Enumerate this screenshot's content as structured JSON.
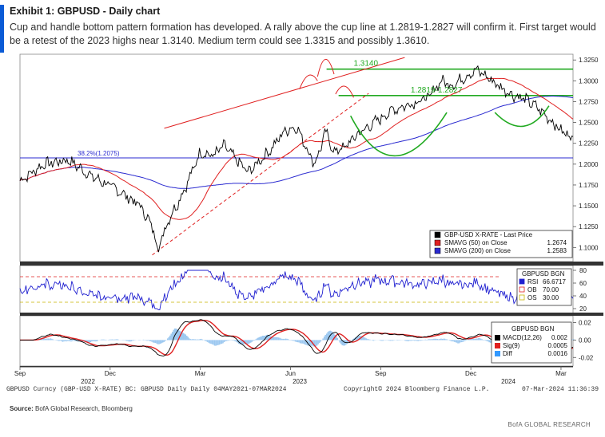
{
  "header": {
    "title": "Exhibit 1: GBPUSD - Daily chart",
    "subtitle": "Cup and handle bottom pattern formation has developed. A rally above the cup line at 1.2819-1.2827 will confirm it. First target would be a retest of the 2023 highs near 1.3140. Medium term could see 1.3315 and possibly 1.3610.",
    "accent_color": "#0a5bd6"
  },
  "footer": {
    "info_left": "GBPUSD Curncy (GBP-USD X-RATE) BC: GBPUSD Daily  Daily 04MAY2021-07MAR2024",
    "info_center": "Copyright© 2024 Bloomberg Finance L.P.",
    "info_right": "07-Mar-2024 11:36:39",
    "source_label": "Source:",
    "source_text": " BofA Global Research, Bloomberg",
    "brand": "BofA GLOBAL RESEARCH"
  },
  "chart_data": [
    {
      "type": "line",
      "panel": "price",
      "title": "GBP-USD X-RATE - Last Price",
      "y_ticks": [
        "1.3250",
        "1.3000",
        "1.2750",
        "1.2500",
        "1.2250",
        "1.2000",
        "1.1750",
        "1.1500",
        "1.1250",
        "1.1000"
      ],
      "ylim": [
        1.085,
        1.33
      ],
      "x_labels": [
        "Sep",
        "Dec",
        "Mar",
        "Jun",
        "Sep",
        "Dec",
        "Mar"
      ],
      "x_year_labels": [
        "2022",
        "2023",
        "2024"
      ],
      "x_values": [
        0,
        3,
        6,
        9,
        12,
        15,
        18
      ],
      "anchors_x": [
        0,
        0.8,
        1.6,
        2.4,
        3.2,
        4.0,
        4.4,
        4.6,
        4.8,
        5.0,
        5.2,
        5.6,
        6.0,
        6.4,
        6.8,
        7.2,
        7.6,
        8.0,
        8.4,
        8.8,
        9.2,
        9.6,
        9.8,
        10.0,
        10.2,
        10.4,
        10.8,
        11.2,
        11.6,
        12.0,
        12.4,
        12.8,
        13.2,
        13.6,
        14.0,
        14.4,
        14.8,
        15.2,
        15.6,
        16.0,
        16.4,
        16.8,
        17.2,
        17.6,
        18.0,
        18.4
      ],
      "anchors_y": [
        1.18,
        1.2,
        1.205,
        1.185,
        1.17,
        1.15,
        1.125,
        1.098,
        1.12,
        1.138,
        1.15,
        1.18,
        1.215,
        1.21,
        1.222,
        1.205,
        1.19,
        1.205,
        1.22,
        1.24,
        1.245,
        1.215,
        1.2,
        1.22,
        1.24,
        1.215,
        1.22,
        1.235,
        1.245,
        1.255,
        1.265,
        1.27,
        1.275,
        1.28,
        1.3,
        1.295,
        1.305,
        1.313,
        1.303,
        1.292,
        1.283,
        1.278,
        1.268,
        1.255,
        1.24,
        1.232
      ],
      "series": [
        {
          "name": "GBP-USD X-RATE - Last Price",
          "color": "#000000"
        },
        {
          "name": "SMAVG (50) on Close",
          "value": "1.2674",
          "color": "#e02020"
        },
        {
          "name": "SMAVG (200) on Close",
          "value": "1.2583",
          "color": "#2a2ad0"
        }
      ],
      "annotations": [
        {
          "text": "1.3140",
          "value": 1.314,
          "color": "#22aa22"
        },
        {
          "text": "1.2819-1.2827",
          "value": 1.2823,
          "color": "#22aa22"
        },
        {
          "text": "38.2%(1.2075)",
          "value": 1.2075,
          "color": "#2a2ad0"
        }
      ]
    },
    {
      "type": "line",
      "panel": "rsi",
      "title": "GBPUSD BGN",
      "y_ticks": [
        "80",
        "60",
        "40",
        "20"
      ],
      "ylim": [
        15,
        85
      ],
      "series": [
        {
          "name": "RSI",
          "value": "66.6717",
          "color": "#2020d0"
        },
        {
          "name": "OB",
          "value": "70.00",
          "color": "#e02020"
        },
        {
          "name": "OS",
          "value": "30.00",
          "color": "#c8b400"
        }
      ]
    },
    {
      "type": "line",
      "panel": "macd",
      "title": "GBPUSD BGN",
      "y_ticks": [
        "0.02",
        "0.00",
        "-0.02"
      ],
      "ylim": [
        -0.028,
        0.026
      ],
      "series": [
        {
          "name": "MACD(12,26)",
          "value": "0.002",
          "color": "#000000"
        },
        {
          "name": "Sig(9)",
          "value": "0.0005",
          "color": "#e02020"
        },
        {
          "name": "Diff",
          "value": "0.0016",
          "color": "#3399ff"
        }
      ]
    }
  ]
}
